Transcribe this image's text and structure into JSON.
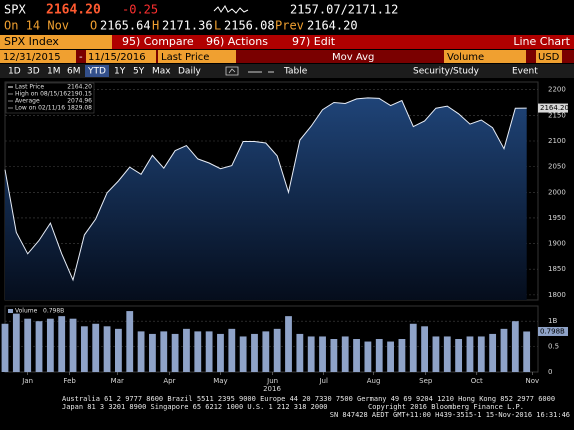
{
  "quote": {
    "ticker": "SPX",
    "last": "2164.20",
    "change": "-0.25",
    "bid_ask": "2157.07/2171.12"
  },
  "session": {
    "date": "On 14 Nov",
    "open": {
      "label": "O",
      "value": "2165.64"
    },
    "high": {
      "label": "H",
      "value": "2171.36"
    },
    "low": {
      "label": "L",
      "value": "2156.08"
    },
    "prev": {
      "label": "Prev",
      "value": "2164.20"
    }
  },
  "menu": {
    "security": "SPX Index",
    "buttons": [
      "95) Compare",
      "96) Actions",
      "97) Edit"
    ],
    "chart_type": "Line Chart"
  },
  "range": {
    "start": "12/31/2015",
    "separator": "-",
    "end": "11/15/2016",
    "field": "Last Price",
    "study": "Mov Avg",
    "lower": "Volume",
    "currency": "USD"
  },
  "periods": [
    "1D",
    "3D",
    "1M",
    "6M",
    "YTD",
    "1Y",
    "5Y",
    "Max"
  ],
  "frequency": "Daily",
  "tools": [
    "Table",
    "Security/Study",
    "Event"
  ],
  "footer": [
    "Australia 61 2 9777 8600 Brazil 5511 2395 9000 Europe 44 20 7330 7500 Germany 49 69 9204 1210 Hong Kong 852 2977 6000",
    "Japan 81 3 3201 8900 Singapore 65 6212 1000 U.S. 1 212 318 2000",
    "Copyright 2016 Bloomberg Finance L.P.",
    "SN 847428 AEDT GMT+11:00 H439-3515-1 15-Nov-2016 16:31:46"
  ],
  "chart_data": [
    {
      "type": "area",
      "xlim": [
        0,
        47
      ],
      "ylim": [
        1790,
        2215
      ],
      "yticks": [
        1800,
        1850,
        1900,
        1950,
        2000,
        2050,
        2100,
        2150,
        2200
      ],
      "grid": true,
      "series": [
        {
          "name": "Last Price",
          "color": "#e8eef8",
          "fill": "#1c3c6e",
          "values": [
            2043.94,
            1922,
            1880,
            1906,
            1940,
            1880,
            1829.08,
            1917,
            1948,
            1999,
            2022,
            2049,
            2035,
            2072,
            2047,
            2081,
            2091,
            2065,
            2057,
            2046,
            2052,
            2099,
            2099,
            2096,
            2071,
            2000,
            2102,
            2129,
            2161,
            2175,
            2173,
            2182,
            2184,
            2183,
            2169,
            2179,
            2128,
            2139,
            2164,
            2168,
            2153,
            2133,
            2141,
            2126,
            2085,
            2164,
            2164.2
          ],
          "last_label": {
            "value": 2164.2,
            "label": "2164.20"
          }
        }
      ],
      "legend": [
        {
          "name": "Last Price",
          "value": {
            "value": 2164.2,
            "label": "2164.20"
          }
        },
        {
          "name": "High on 08/15/16",
          "value": 2190.15
        },
        {
          "name": "Average",
          "value": 2074.96
        },
        {
          "name": "Low on 02/11/16",
          "value": 1829.08
        }
      ]
    },
    {
      "type": "bar",
      "xlim": [
        0,
        47
      ],
      "ylim": [
        0,
        1.3
      ],
      "yticks": [
        0,
        0.5,
        {
          "value": 1,
          "label": "1B"
        }
      ],
      "grid": true,
      "xticks": [
        {
          "value": 2,
          "label": "Jan"
        },
        {
          "value": 5.7,
          "label": "Feb"
        },
        {
          "value": 9.9,
          "label": "Mar"
        },
        {
          "value": 14.5,
          "label": "Apr"
        },
        {
          "value": 19,
          "label": "May"
        },
        {
          "value": 23.6,
          "label": "Jun"
        },
        {
          "value": 28.1,
          "label": "Jul"
        },
        {
          "value": 32.5,
          "label": "Aug"
        },
        {
          "value": 37.1,
          "label": "Sep"
        },
        {
          "value": 41.6,
          "label": "Oct"
        },
        {
          "value": 46.5,
          "label": "Nov"
        }
      ],
      "xlabel": "2016",
      "series": [
        {
          "name": "Volume",
          "color": "#8fa3c8",
          "values": [
            0.95,
            1.15,
            1.05,
            1.0,
            1.05,
            1.1,
            1.05,
            0.9,
            0.95,
            0.9,
            0.85,
            1.2,
            0.8,
            0.75,
            0.8,
            0.75,
            0.85,
            0.8,
            0.8,
            0.75,
            0.85,
            0.7,
            0.75,
            0.8,
            0.85,
            1.1,
            0.75,
            0.7,
            0.7,
            0.65,
            0.7,
            0.65,
            0.6,
            0.65,
            0.6,
            0.65,
            0.95,
            0.9,
            0.7,
            0.7,
            0.65,
            0.7,
            0.7,
            0.75,
            0.85,
            1.0,
            0.798
          ],
          "last_label": {
            "value": 0.798,
            "label": "0.798B"
          }
        }
      ]
    }
  ]
}
